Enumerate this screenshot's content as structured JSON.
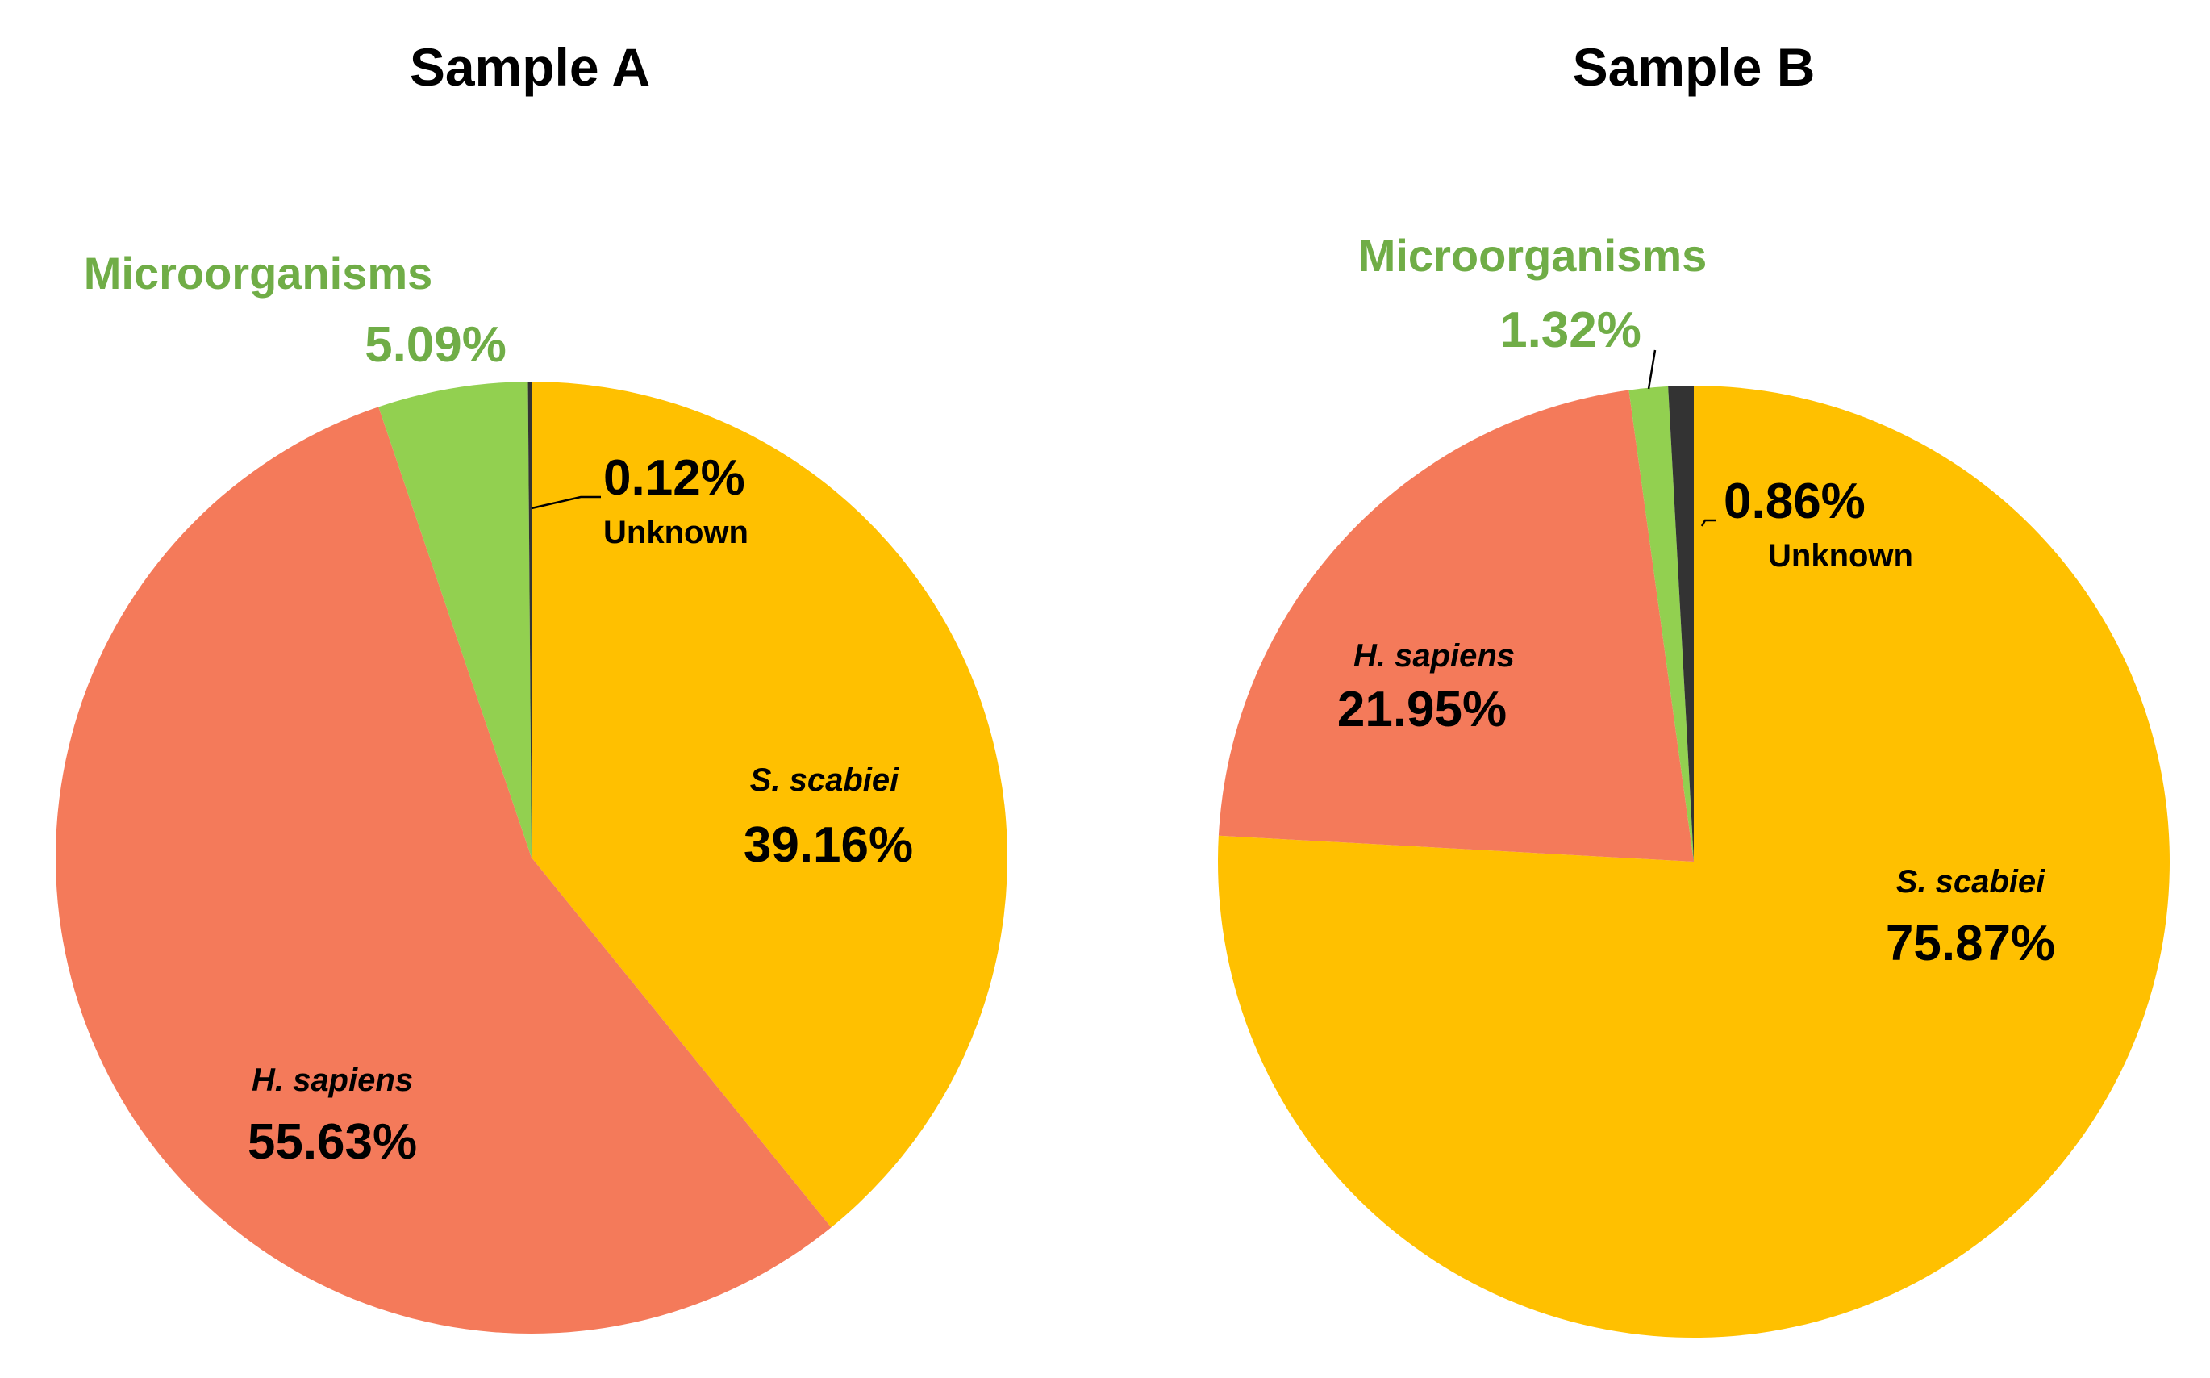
{
  "colors": {
    "s_scabiei": "#FFC000",
    "h_sapiens": "#F47A5A",
    "microorganisms": "#92D050",
    "unknown": "#333333",
    "micro_label": "#70AD47",
    "text": "#000000"
  },
  "chart_data": [
    {
      "type": "pie",
      "title": "Sample A",
      "slices": [
        {
          "key": "s_scabiei",
          "label": "S. scabiei",
          "value": 39.16,
          "value_label": "39.16%"
        },
        {
          "key": "h_sapiens",
          "label": "H. sapiens",
          "value": 55.63,
          "value_label": "55.63%"
        },
        {
          "key": "microorganisms",
          "label": "Microorganisms",
          "value": 5.09,
          "value_label": "5.09%"
        },
        {
          "key": "unknown",
          "label": "Unknown",
          "value": 0.12,
          "value_label": "0.12%"
        }
      ]
    },
    {
      "type": "pie",
      "title": "Sample B",
      "slices": [
        {
          "key": "s_scabiei",
          "label": "S. scabiei",
          "value": 75.87,
          "value_label": "75.87%"
        },
        {
          "key": "h_sapiens",
          "label": "H. sapiens",
          "value": 21.95,
          "value_label": "21.95%"
        },
        {
          "key": "microorganisms",
          "label": "Microorganisms",
          "value": 1.32,
          "value_label": "1.32%"
        },
        {
          "key": "unknown",
          "label": "Unknown",
          "value": 0.86,
          "value_label": "0.86%"
        }
      ]
    }
  ]
}
